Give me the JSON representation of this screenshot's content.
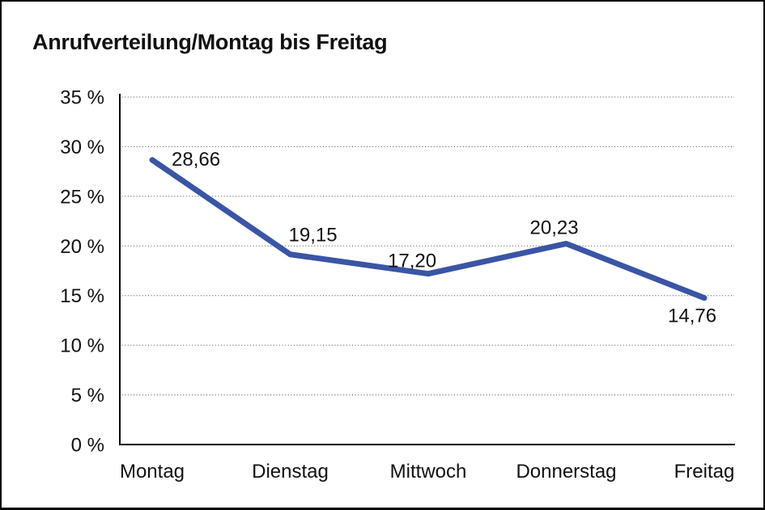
{
  "window": {
    "title": "Anrufverteilung/Montag bis Freitag"
  },
  "chart_data": {
    "type": "line",
    "title": "Anrufverteilung/Montag bis Freitag",
    "categories": [
      "Montag",
      "Dienstag",
      "Mittwoch",
      "Donnerstag",
      "Freitag"
    ],
    "values": [
      28.66,
      19.15,
      17.2,
      20.23,
      14.76
    ],
    "point_labels": [
      "28,66",
      "19,15",
      "17,20",
      "20,23",
      "14,76"
    ],
    "y_ticks": [
      0,
      5,
      10,
      15,
      20,
      25,
      30,
      35
    ],
    "y_tick_labels": [
      "0 %",
      "5 %",
      "10 %",
      "15 %",
      "20 %",
      "25 %",
      "30 %",
      "35 %"
    ],
    "ylim": [
      0,
      35
    ],
    "xlabel": "",
    "ylabel": "",
    "grid": "horizontal-dotted",
    "legend": "none",
    "line_color": "#3A55A5",
    "axis_color": "#000000",
    "grid_color": "#4a4a4a",
    "label_color": "#1a1a1a",
    "background_color": "#ffffff"
  }
}
